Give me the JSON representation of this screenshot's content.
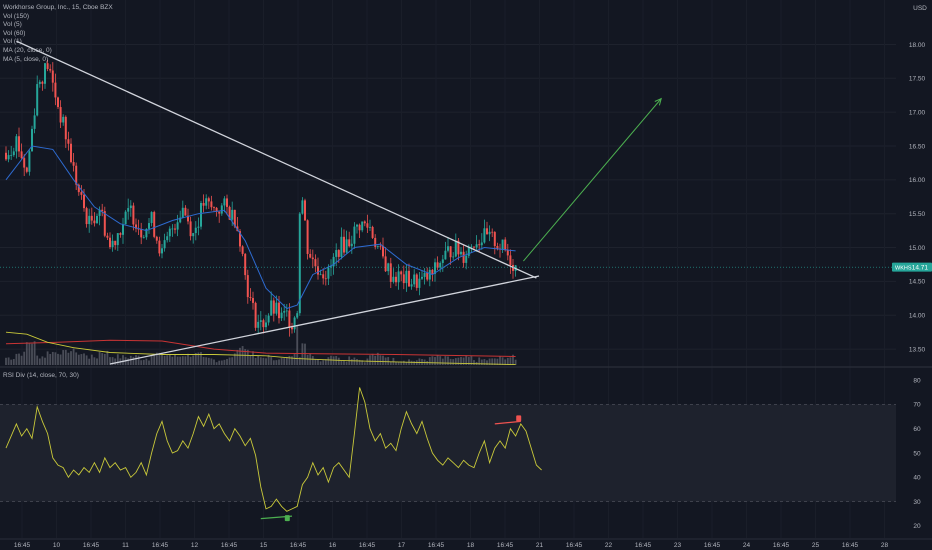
{
  "legend": {
    "title": "Workhorse Group, Inc., 15, Cboe BZX",
    "lines": [
      "Vol (150)",
      "Vol (5)",
      "Vol (60)",
      "Vol (1)",
      "MA (20, close, 0)",
      "MA (5, close, 0)"
    ]
  },
  "currency": "USD",
  "price_tag": {
    "symbol": "WKHS",
    "value": "14.71"
  },
  "rsi_legend": "RSI Div (14, close, 70, 30)",
  "colors": {
    "background": "#131722",
    "up": "#26a69a",
    "down": "#ef5350",
    "ma20": "#2e6bd1",
    "rsi": "#c9c93a",
    "trendline": "#d1d4dc",
    "projection": "#4caf50",
    "volume": "#5d606b"
  },
  "chart_data": [
    {
      "type": "candlestick",
      "ylim": [
        13.25,
        18.45
      ],
      "yticks": [
        "18.00",
        "17.50",
        "17.00",
        "16.50",
        "16.00",
        "15.50",
        "15.00",
        "14.50",
        "14.00",
        "13.50"
      ],
      "xticks": [
        "16:45",
        "10",
        "16:45",
        "11",
        "16:45",
        "12",
        "16:45",
        "15",
        "16:45",
        "16",
        "16:45",
        "17",
        "16:45",
        "18",
        "16:45",
        "21",
        "16:45",
        "22",
        "16:45",
        "23",
        "16:45",
        "24",
        "16:45",
        "25",
        "16:45",
        "28"
      ],
      "close_path": [
        [
          0,
          16.4
        ],
        [
          4,
          16.6
        ],
        [
          8,
          16.1
        ],
        [
          12,
          17.4
        ],
        [
          16,
          17.7
        ],
        [
          20,
          17.1
        ],
        [
          24,
          16.5
        ],
        [
          28,
          15.8
        ],
        [
          32,
          15.35
        ],
        [
          36,
          15.6
        ],
        [
          40,
          15.0
        ],
        [
          44,
          15.3
        ],
        [
          48,
          15.55
        ],
        [
          52,
          15.25
        ],
        [
          56,
          15.4
        ],
        [
          60,
          14.9
        ],
        [
          64,
          15.3
        ],
        [
          68,
          15.6
        ],
        [
          72,
          15.2
        ],
        [
          76,
          15.65
        ],
        [
          80,
          15.55
        ],
        [
          84,
          15.6
        ],
        [
          88,
          15.45
        ],
        [
          90,
          15.15
        ],
        [
          92,
          14.6
        ],
        [
          94,
          14.2
        ],
        [
          96,
          13.95
        ],
        [
          98,
          13.85
        ],
        [
          100,
          13.95
        ],
        [
          102,
          14.1
        ],
        [
          104,
          14.05
        ],
        [
          106,
          13.95
        ],
        [
          108,
          14.0
        ],
        [
          110,
          13.9
        ],
        [
          112,
          14.1
        ],
        [
          113,
          15.6
        ],
        [
          114,
          15.7
        ],
        [
          116,
          15.0
        ],
        [
          118,
          14.8
        ],
        [
          120,
          14.7
        ],
        [
          124,
          14.6
        ],
        [
          128,
          15.0
        ],
        [
          132,
          15.1
        ],
        [
          136,
          15.35
        ],
        [
          140,
          15.3
        ],
        [
          144,
          14.9
        ],
        [
          148,
          14.6
        ],
        [
          152,
          14.55
        ],
        [
          156,
          14.5
        ],
        [
          160,
          14.5
        ],
        [
          164,
          14.6
        ],
        [
          168,
          14.85
        ],
        [
          172,
          15.0
        ],
        [
          176,
          14.9
        ],
        [
          180,
          15.1
        ],
        [
          184,
          15.15
        ],
        [
          188,
          15.1
        ],
        [
          192,
          14.95
        ],
        [
          196,
          14.71
        ]
      ],
      "ma20": [
        [
          0,
          16.0
        ],
        [
          10,
          16.5
        ],
        [
          18,
          16.45
        ],
        [
          26,
          16.0
        ],
        [
          34,
          15.6
        ],
        [
          44,
          15.35
        ],
        [
          54,
          15.25
        ],
        [
          64,
          15.4
        ],
        [
          74,
          15.5
        ],
        [
          84,
          15.55
        ],
        [
          92,
          15.1
        ],
        [
          100,
          14.4
        ],
        [
          108,
          14.1
        ],
        [
          112,
          14.15
        ],
        [
          118,
          14.6
        ],
        [
          126,
          14.75
        ],
        [
          134,
          15.0
        ],
        [
          144,
          15.05
        ],
        [
          154,
          14.75
        ],
        [
          164,
          14.6
        ],
        [
          174,
          14.85
        ],
        [
          184,
          15.0
        ],
        [
          196,
          14.95
        ]
      ],
      "volume_line": [
        [
          0,
          13.75
        ],
        [
          8,
          13.72
        ],
        [
          16,
          13.6
        ],
        [
          26,
          13.52
        ],
        [
          40,
          13.45
        ],
        [
          60,
          13.42
        ],
        [
          80,
          13.42
        ],
        [
          100,
          13.4
        ],
        [
          112,
          13.36
        ],
        [
          130,
          13.33
        ],
        [
          160,
          13.3
        ],
        [
          196,
          13.27
        ]
      ],
      "volume_avg": [
        [
          0,
          13.58
        ],
        [
          20,
          13.6
        ],
        [
          40,
          13.63
        ],
        [
          60,
          13.62
        ],
        [
          80,
          13.5
        ],
        [
          100,
          13.44
        ],
        [
          120,
          13.43
        ],
        [
          150,
          13.42
        ],
        [
          196,
          13.39
        ]
      ],
      "trendline_upper": [
        [
          4,
          18.05
        ],
        [
          204,
          14.55
        ]
      ],
      "trendline_lower": [
        [
          40,
          13.28
        ],
        [
          205,
          14.58
        ]
      ],
      "projection": [
        [
          199,
          14.8
        ],
        [
          252,
          17.2
        ]
      ],
      "last_price": 14.71
    },
    {
      "type": "line",
      "name": "RSI Div (14, close, 70, 30)",
      "ylim": [
        15,
        85
      ],
      "yticks": [
        "80",
        "70",
        "60",
        "50",
        "40",
        "30",
        "20"
      ],
      "band": [
        30,
        70
      ],
      "values": [
        [
          0,
          52
        ],
        [
          4,
          62
        ],
        [
          6,
          57
        ],
        [
          8,
          60
        ],
        [
          10,
          56
        ],
        [
          12,
          69
        ],
        [
          14,
          63
        ],
        [
          16,
          58
        ],
        [
          18,
          48
        ],
        [
          20,
          45
        ],
        [
          22,
          44
        ],
        [
          24,
          40
        ],
        [
          26,
          43
        ],
        [
          28,
          41
        ],
        [
          30,
          44
        ],
        [
          32,
          42
        ],
        [
          34,
          46
        ],
        [
          36,
          42
        ],
        [
          38,
          48
        ],
        [
          40,
          44
        ],
        [
          42,
          46
        ],
        [
          44,
          43
        ],
        [
          46,
          44
        ],
        [
          48,
          40
        ],
        [
          50,
          42
        ],
        [
          52,
          46
        ],
        [
          54,
          41
        ],
        [
          56,
          50
        ],
        [
          58,
          58
        ],
        [
          60,
          63
        ],
        [
          62,
          55
        ],
        [
          64,
          50
        ],
        [
          66,
          51
        ],
        [
          68,
          55
        ],
        [
          70,
          52
        ],
        [
          72,
          58
        ],
        [
          74,
          65
        ],
        [
          76,
          61
        ],
        [
          78,
          66
        ],
        [
          80,
          60
        ],
        [
          82,
          62
        ],
        [
          84,
          58
        ],
        [
          86,
          55
        ],
        [
          88,
          60
        ],
        [
          90,
          57
        ],
        [
          92,
          53
        ],
        [
          94,
          56
        ],
        [
          96,
          49
        ],
        [
          98,
          36
        ],
        [
          100,
          27
        ],
        [
          102,
          28
        ],
        [
          104,
          31
        ],
        [
          106,
          28
        ],
        [
          108,
          26
        ],
        [
          110,
          27
        ],
        [
          112,
          28
        ],
        [
          114,
          37
        ],
        [
          116,
          40
        ],
        [
          118,
          46
        ],
        [
          120,
          41
        ],
        [
          122,
          44
        ],
        [
          124,
          38
        ],
        [
          126,
          44
        ],
        [
          128,
          46
        ],
        [
          130,
          43
        ],
        [
          132,
          40
        ],
        [
          134,
          58
        ],
        [
          136,
          77
        ],
        [
          138,
          71
        ],
        [
          140,
          60
        ],
        [
          142,
          55
        ],
        [
          144,
          58
        ],
        [
          146,
          52
        ],
        [
          148,
          54
        ],
        [
          150,
          51
        ],
        [
          152,
          60
        ],
        [
          154,
          67
        ],
        [
          156,
          62
        ],
        [
          158,
          58
        ],
        [
          160,
          63
        ],
        [
          162,
          56
        ],
        [
          164,
          50
        ],
        [
          166,
          47
        ],
        [
          168,
          45
        ],
        [
          170,
          48
        ],
        [
          172,
          46
        ],
        [
          174,
          44
        ],
        [
          176,
          47
        ],
        [
          178,
          45
        ],
        [
          180,
          44
        ],
        [
          182,
          50
        ],
        [
          184,
          55
        ],
        [
          186,
          46
        ],
        [
          188,
          52
        ],
        [
          190,
          55
        ],
        [
          192,
          52
        ],
        [
          194,
          60
        ],
        [
          196,
          57
        ],
        [
          198,
          62
        ],
        [
          200,
          59
        ],
        [
          202,
          52
        ],
        [
          204,
          45
        ],
        [
          206,
          43
        ]
      ]
    }
  ]
}
